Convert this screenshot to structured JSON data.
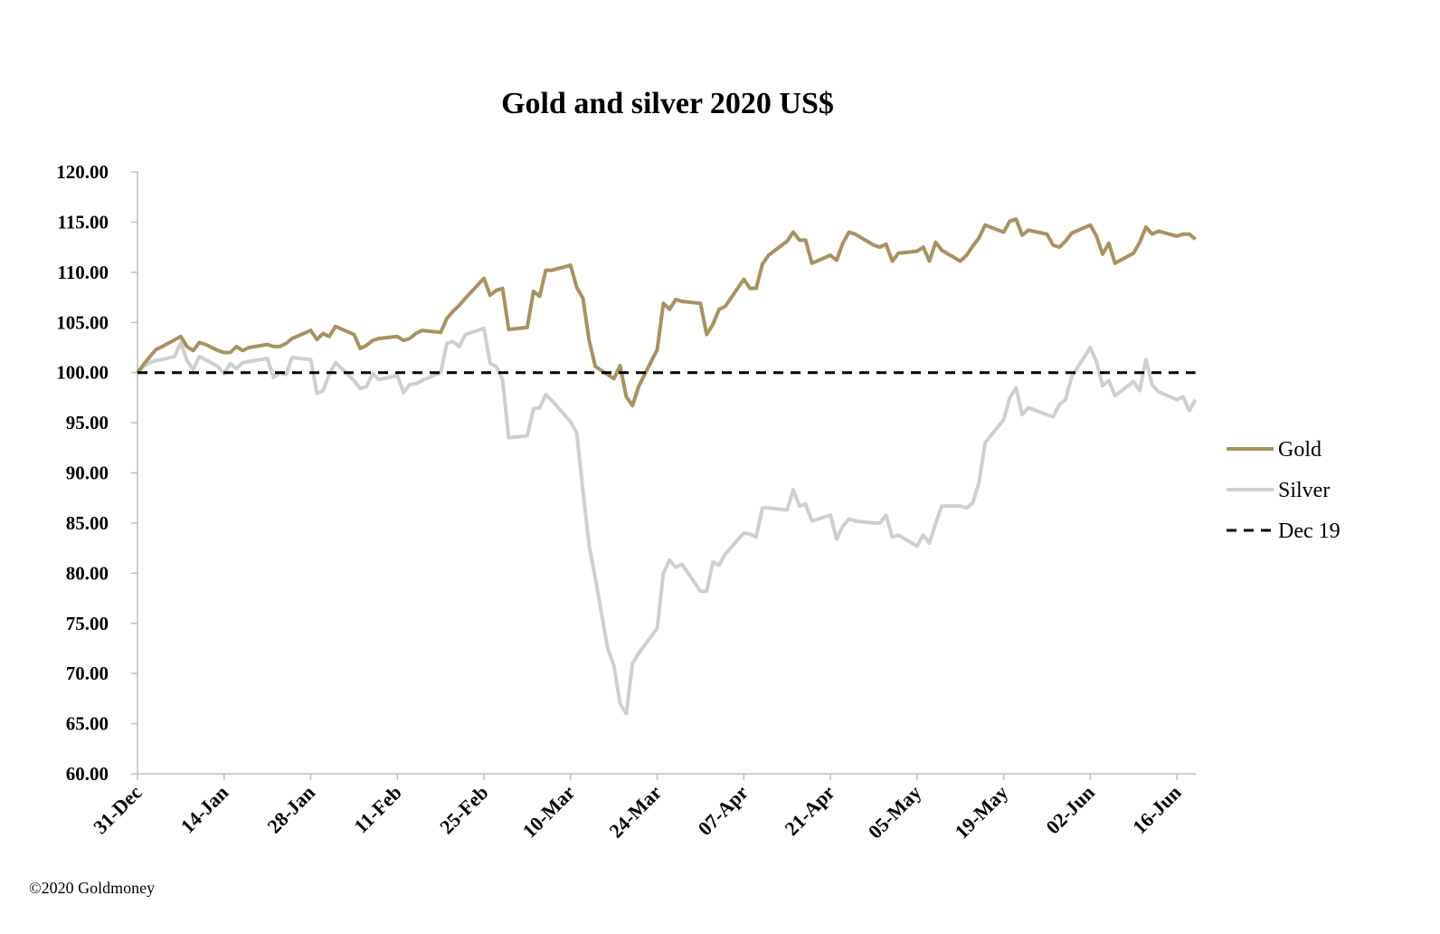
{
  "chart_data": {
    "type": "line",
    "title": "Gold and silver 2020  US$",
    "ylim": [
      60,
      120
    ],
    "yticks": [
      "60.00",
      "65.00",
      "70.00",
      "75.00",
      "80.00",
      "85.00",
      "90.00",
      "95.00",
      "100.00",
      "105.00",
      "110.00",
      "115.00",
      "120.00"
    ],
    "xticks": [
      "31-Dec",
      "14-Jan",
      "28-Jan",
      "11-Feb",
      "25-Feb",
      "10-Mar",
      "24-Mar",
      "07-Apr",
      "21-Apr",
      "05-May",
      "19-May",
      "02-Jun",
      "16-Jun"
    ],
    "x_start": "2019-12-31",
    "x_end": "2020-06-18",
    "grid": false,
    "legend_position": "right",
    "colors": {
      "gold": "#a8925e",
      "silver": "#cfcfcf",
      "ref": "#000000"
    },
    "series": [
      {
        "name": "Gold",
        "points": [
          [
            0,
            100.0
          ],
          [
            1,
            100.8
          ],
          [
            2,
            101.6
          ],
          [
            3,
            102.3
          ],
          [
            4,
            102.6
          ],
          [
            7,
            103.6
          ],
          [
            8,
            102.6
          ],
          [
            9,
            102.2
          ],
          [
            10,
            103.0
          ],
          [
            11,
            102.8
          ],
          [
            13,
            102.2
          ],
          [
            14,
            102.0
          ],
          [
            15,
            102.0
          ],
          [
            16,
            102.6
          ],
          [
            17,
            102.2
          ],
          [
            18,
            102.5
          ],
          [
            21,
            102.8
          ],
          [
            22,
            102.6
          ],
          [
            23,
            102.6
          ],
          [
            24,
            102.9
          ],
          [
            25,
            103.4
          ],
          [
            28,
            104.2
          ],
          [
            29,
            103.3
          ],
          [
            30,
            103.9
          ],
          [
            31,
            103.6
          ],
          [
            32,
            104.6
          ],
          [
            35,
            103.8
          ],
          [
            36,
            102.4
          ],
          [
            37,
            102.7
          ],
          [
            38,
            103.2
          ],
          [
            39,
            103.4
          ],
          [
            42,
            103.6
          ],
          [
            43,
            103.2
          ],
          [
            44,
            103.4
          ],
          [
            45,
            103.9
          ],
          [
            46,
            104.2
          ],
          [
            49,
            104.0
          ],
          [
            50,
            105.4
          ],
          [
            51,
            106.1
          ],
          [
            52,
            106.7
          ],
          [
            53,
            107.4
          ],
          [
            56,
            109.4
          ],
          [
            57,
            107.7
          ],
          [
            58,
            108.2
          ],
          [
            59,
            108.4
          ],
          [
            60,
            104.3
          ],
          [
            63,
            104.5
          ],
          [
            64,
            108.1
          ],
          [
            65,
            107.6
          ],
          [
            66,
            110.2
          ],
          [
            67,
            110.2
          ],
          [
            70,
            110.7
          ],
          [
            71,
            108.5
          ],
          [
            72,
            107.4
          ],
          [
            73,
            103.2
          ],
          [
            74,
            100.6
          ],
          [
            77,
            99.4
          ],
          [
            78,
            100.7
          ],
          [
            79,
            97.6
          ],
          [
            80,
            96.7
          ],
          [
            81,
            98.6
          ],
          [
            84,
            102.3
          ],
          [
            85,
            106.9
          ],
          [
            86,
            106.3
          ],
          [
            87,
            107.3
          ],
          [
            88,
            107.1
          ],
          [
            91,
            106.9
          ],
          [
            92,
            103.8
          ],
          [
            93,
            104.8
          ],
          [
            94,
            106.3
          ],
          [
            95,
            106.6
          ],
          [
            98,
            109.3
          ],
          [
            99,
            108.4
          ],
          [
            100,
            108.4
          ],
          [
            101,
            110.8
          ],
          [
            102,
            111.7
          ],
          [
            105,
            113.1
          ],
          [
            106,
            114.0
          ],
          [
            107,
            113.2
          ],
          [
            108,
            113.2
          ],
          [
            109,
            110.9
          ],
          [
            112,
            111.7
          ],
          [
            113,
            111.2
          ],
          [
            114,
            112.9
          ],
          [
            115,
            114.0
          ],
          [
            116,
            113.8
          ],
          [
            119,
            112.7
          ],
          [
            120,
            112.5
          ],
          [
            121,
            112.8
          ],
          [
            122,
            111.1
          ],
          [
            123,
            111.9
          ],
          [
            126,
            112.1
          ],
          [
            127,
            112.5
          ],
          [
            128,
            111.1
          ],
          [
            129,
            113.0
          ],
          [
            130,
            112.2
          ],
          [
            133,
            111.1
          ],
          [
            134,
            111.7
          ],
          [
            135,
            112.6
          ],
          [
            136,
            113.4
          ],
          [
            137,
            114.7
          ],
          [
            140,
            114.0
          ],
          [
            141,
            115.1
          ],
          [
            142,
            115.3
          ],
          [
            143,
            113.7
          ],
          [
            144,
            114.2
          ],
          [
            147,
            113.8
          ],
          [
            148,
            112.7
          ],
          [
            149,
            112.5
          ],
          [
            150,
            113.1
          ],
          [
            151,
            113.9
          ],
          [
            154,
            114.7
          ],
          [
            155,
            113.6
          ],
          [
            156,
            111.8
          ],
          [
            157,
            112.9
          ],
          [
            158,
            110.9
          ],
          [
            161,
            111.9
          ],
          [
            162,
            113.0
          ],
          [
            163,
            114.5
          ],
          [
            164,
            113.8
          ],
          [
            165,
            114.1
          ],
          [
            168,
            113.6
          ],
          [
            169,
            113.8
          ],
          [
            170,
            113.8
          ],
          [
            171,
            113.3
          ]
        ]
      },
      {
        "name": "Silver",
        "points": [
          [
            0,
            100.0
          ],
          [
            1,
            100.6
          ],
          [
            2,
            101.0
          ],
          [
            3,
            101.2
          ],
          [
            4,
            101.3
          ],
          [
            6,
            101.6
          ],
          [
            7,
            103.0
          ],
          [
            8,
            101.2
          ],
          [
            9,
            100.3
          ],
          [
            10,
            101.6
          ],
          [
            11,
            101.3
          ],
          [
            13,
            100.6
          ],
          [
            14,
            99.9
          ],
          [
            15,
            100.9
          ],
          [
            16,
            100.4
          ],
          [
            17,
            101.0
          ],
          [
            18,
            101.1
          ],
          [
            21,
            101.4
          ],
          [
            22,
            99.5
          ],
          [
            23,
            100.0
          ],
          [
            24,
            99.8
          ],
          [
            25,
            101.5
          ],
          [
            28,
            101.3
          ],
          [
            29,
            97.9
          ],
          [
            30,
            98.2
          ],
          [
            31,
            99.8
          ],
          [
            32,
            101.0
          ],
          [
            35,
            99.2
          ],
          [
            36,
            98.4
          ],
          [
            37,
            98.6
          ],
          [
            38,
            99.9
          ],
          [
            39,
            99.3
          ],
          [
            42,
            99.7
          ],
          [
            43,
            98.0
          ],
          [
            44,
            98.8
          ],
          [
            45,
            98.9
          ],
          [
            46,
            99.2
          ],
          [
            49,
            100.0
          ],
          [
            50,
            102.9
          ],
          [
            51,
            103.1
          ],
          [
            52,
            102.6
          ],
          [
            53,
            103.8
          ],
          [
            56,
            104.4
          ],
          [
            57,
            100.9
          ],
          [
            58,
            100.6
          ],
          [
            59,
            99.3
          ],
          [
            60,
            93.5
          ],
          [
            63,
            93.7
          ],
          [
            64,
            96.4
          ],
          [
            65,
            96.5
          ],
          [
            66,
            97.8
          ],
          [
            67,
            97.2
          ],
          [
            70,
            95.1
          ],
          [
            71,
            94.0
          ],
          [
            72,
            88.2
          ],
          [
            73,
            82.8
          ],
          [
            74,
            79.5
          ],
          [
            75,
            76.0
          ],
          [
            76,
            72.5
          ],
          [
            77,
            70.8
          ],
          [
            78,
            67.0
          ],
          [
            79,
            66.0
          ],
          [
            80,
            71.0
          ],
          [
            81,
            72.0
          ],
          [
            84,
            74.5
          ],
          [
            85,
            80.0
          ],
          [
            86,
            81.3
          ],
          [
            87,
            80.6
          ],
          [
            88,
            80.9
          ],
          [
            91,
            78.2
          ],
          [
            92,
            78.2
          ],
          [
            93,
            81.1
          ],
          [
            94,
            80.8
          ],
          [
            95,
            81.9
          ],
          [
            98,
            84.0
          ],
          [
            99,
            83.9
          ],
          [
            100,
            83.6
          ],
          [
            101,
            86.5
          ],
          [
            102,
            86.5
          ],
          [
            105,
            86.3
          ],
          [
            106,
            88.3
          ],
          [
            107,
            86.7
          ],
          [
            108,
            86.9
          ],
          [
            109,
            85.2
          ],
          [
            112,
            85.8
          ],
          [
            113,
            83.4
          ],
          [
            114,
            84.7
          ],
          [
            115,
            85.4
          ],
          [
            116,
            85.2
          ],
          [
            119,
            85.0
          ],
          [
            120,
            85.0
          ],
          [
            121,
            85.8
          ],
          [
            122,
            83.6
          ],
          [
            123,
            83.8
          ],
          [
            126,
            82.7
          ],
          [
            127,
            83.8
          ],
          [
            128,
            83.0
          ],
          [
            129,
            85.0
          ],
          [
            130,
            86.7
          ],
          [
            133,
            86.7
          ],
          [
            134,
            86.5
          ],
          [
            135,
            87.0
          ],
          [
            136,
            89.0
          ],
          [
            137,
            93.0
          ],
          [
            140,
            95.3
          ],
          [
            141,
            97.5
          ],
          [
            142,
            98.5
          ],
          [
            143,
            95.8
          ],
          [
            144,
            96.5
          ],
          [
            147,
            95.8
          ],
          [
            148,
            95.6
          ],
          [
            149,
            96.8
          ],
          [
            150,
            97.3
          ],
          [
            151,
            99.6
          ],
          [
            154,
            102.5
          ],
          [
            155,
            101.1
          ],
          [
            156,
            98.7
          ],
          [
            157,
            99.2
          ],
          [
            158,
            97.7
          ],
          [
            161,
            99.1
          ],
          [
            162,
            98.2
          ],
          [
            163,
            101.3
          ],
          [
            164,
            98.8
          ],
          [
            165,
            98.1
          ],
          [
            168,
            97.3
          ],
          [
            169,
            97.6
          ],
          [
            170,
            96.2
          ],
          [
            171,
            97.3
          ]
        ]
      },
      {
        "name": "Dec 19",
        "dashed": true,
        "points": [
          [
            0,
            100.0
          ],
          [
            171,
            100.0
          ]
        ]
      }
    ]
  },
  "footer": {
    "copyright": "©2020 Goldmoney"
  }
}
